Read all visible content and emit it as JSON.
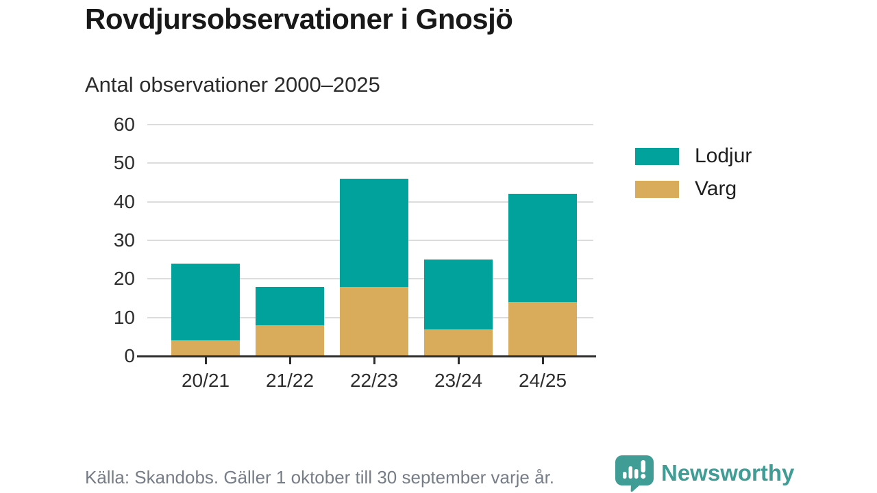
{
  "header": {
    "title": "Rovdjursobservationer i Gnosjö",
    "subtitle": "Antal observationer 2000–2025"
  },
  "chart_data": {
    "type": "bar",
    "stacked": true,
    "title": "Rovdjursobservationer i Gnosjö",
    "subtitle": "Antal observationer 2000–2025",
    "categories": [
      "20/21",
      "21/22",
      "22/23",
      "23/24",
      "24/25"
    ],
    "series": [
      {
        "name": "Varg",
        "color": "#d9ac5c",
        "values": [
          4,
          8,
          18,
          7,
          14
        ]
      },
      {
        "name": "Lodjur",
        "color": "#00a29b",
        "values": [
          20,
          10,
          28,
          18,
          28
        ]
      }
    ],
    "totals": [
      24,
      18,
      46,
      25,
      42
    ],
    "xlabel": "",
    "ylabel": "",
    "ylim": [
      0,
      60
    ],
    "yticks": [
      0,
      10,
      20,
      30,
      40,
      50,
      60
    ],
    "grid": true,
    "legend_position": "right"
  },
  "legend": {
    "items": [
      {
        "label": "Lodjur",
        "color": "#00a29b"
      },
      {
        "label": "Varg",
        "color": "#d9ac5c"
      }
    ]
  },
  "footer": {
    "source": "Källa: Skandobs. Gäller 1 oktober till 30 september varje år.",
    "brand": "Newsworthy",
    "brand_color": "#3f9d96"
  }
}
